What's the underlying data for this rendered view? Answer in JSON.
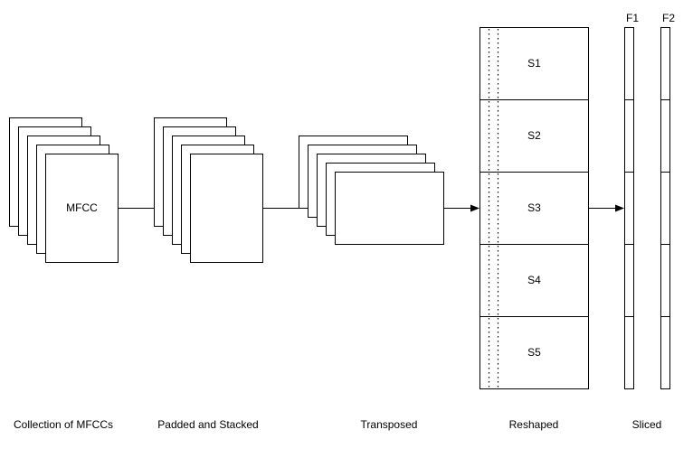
{
  "diagram": {
    "nodes": {
      "mfcc_label": "MFCC",
      "reshaped_segments": [
        "S1",
        "S2",
        "S3",
        "S4",
        "S5"
      ],
      "sliced_columns": [
        "F1",
        "F2"
      ]
    },
    "stage_labels": {
      "collection": "Collection of MFCCs",
      "padded": "Padded and Stacked",
      "transposed": "Transposed",
      "reshaped": "Reshaped",
      "sliced": "Sliced"
    },
    "colors": {
      "stroke": "#000000",
      "fill": "#ffffff"
    }
  }
}
